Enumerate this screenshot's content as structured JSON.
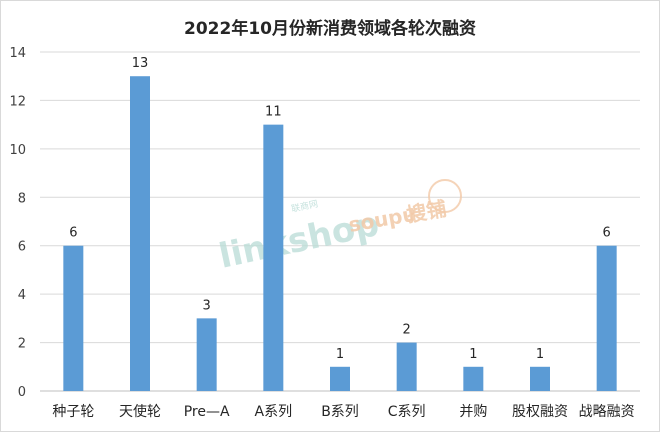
{
  "chart_data": {
    "type": "bar",
    "title": "2022年10月份新消费领域各轮次融资",
    "xlabel": "",
    "ylabel": "",
    "categories": [
      "种子轮",
      "天使轮",
      "Pre—A",
      "A系列",
      "B系列",
      "C系列",
      "并购",
      "股权融资",
      "战略融资"
    ],
    "values": [
      6,
      13,
      3,
      11,
      1,
      2,
      1,
      1,
      6
    ],
    "data_labels": [
      "6",
      "13",
      "3",
      "11",
      "1",
      "2",
      "1",
      "1",
      "6"
    ],
    "ylim": [
      0,
      14
    ],
    "yticks": [
      "0",
      "2",
      "4",
      "6",
      "8",
      "10",
      "12",
      "14"
    ],
    "grid": true,
    "legend": "none",
    "bar_color": "#5b9bd5"
  },
  "watermarks": {
    "linkshop_text": "linkshop",
    "linkshop_small": "联商网",
    "soupu_text": "soupu",
    "soupu_cn": "搜铺"
  }
}
